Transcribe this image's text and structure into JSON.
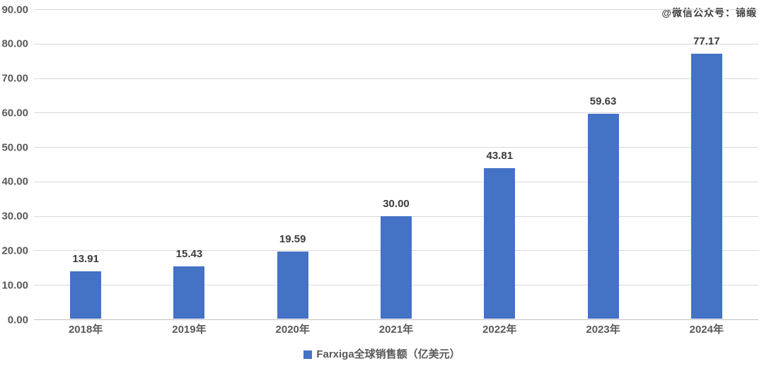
{
  "watermark": "@微信公众号：锦缎",
  "legend": {
    "label": "Farxiga全球销售额（亿美元）"
  },
  "colors": {
    "bar": "#4472C4",
    "gridline": "#D9D9D9",
    "axis_line": "#C0C0C0",
    "tick_text": "#595959",
    "value_text": "#3B3B3B",
    "background": "#FFFFFF"
  },
  "chart_data": {
    "type": "bar",
    "title": "",
    "xlabel": "",
    "ylabel": "",
    "categories": [
      "2018年",
      "2019年",
      "2020年",
      "2021年",
      "2022年",
      "2023年",
      "2024年"
    ],
    "values": [
      13.91,
      15.43,
      19.59,
      30.0,
      43.81,
      59.63,
      77.17
    ],
    "value_labels": [
      "13.91",
      "15.43",
      "19.59",
      "30.00",
      "43.81",
      "59.63",
      "77.17"
    ],
    "series_name": "Farxiga全球销售额（亿美元）",
    "ylim": [
      0,
      90
    ],
    "ytick_step": 10,
    "ytick_labels": [
      "0.00",
      "10.00",
      "20.00",
      "30.00",
      "40.00",
      "50.00",
      "60.00",
      "70.00",
      "80.00",
      "90.00"
    ],
    "grid": true,
    "legend_position": "bottom",
    "data_labels": true
  }
}
